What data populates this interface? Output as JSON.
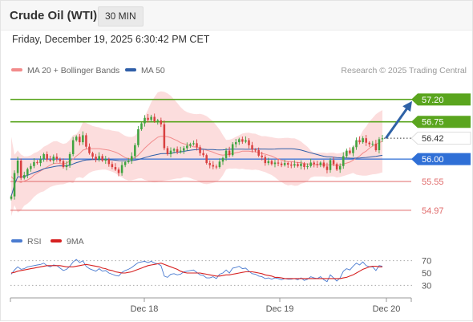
{
  "header": {
    "title": "Crude Oil (WTI)",
    "interval": "30 MIN",
    "datetime": "Friday, December 19, 2025 6:30:42 PM CET"
  },
  "legend_top": [
    {
      "label": "MA 20 + Bollinger Bands",
      "color": "#f28b8b"
    },
    {
      "label": "MA 50",
      "color": "#2f5ea8"
    }
  ],
  "credit": "Research © 2025 Trading Central",
  "legend_bottom": [
    {
      "label": "RSI",
      "color": "#4a7bd0"
    },
    {
      "label": "9MA",
      "color": "#d62020"
    }
  ],
  "colors": {
    "up": "#3fa33f",
    "down": "#d94040",
    "resistance": "#5aa51e",
    "support": "#e06a6a",
    "pivot": "#2f6fd6",
    "bollinger_fill": "#fbd7d7",
    "arrow": "#2f62a6"
  },
  "chart_data": [
    {
      "type": "candlestick",
      "x_tick_labels": [
        "Dec 18",
        "Dec 19",
        "Dec 20"
      ],
      "ylim": [
        54.5,
        57.65
      ],
      "price_levels": [
        {
          "label": "57.20",
          "value": 57.2,
          "kind": "resistance"
        },
        {
          "label": "56.75",
          "value": 56.75,
          "kind": "resistance"
        },
        {
          "label": "56.42",
          "value": 56.42,
          "kind": "last"
        },
        {
          "label": "56.00",
          "value": 56.0,
          "kind": "pivot"
        },
        {
          "label": "55.55",
          "value": 55.55,
          "kind": "support"
        },
        {
          "label": "54.97",
          "value": 54.97,
          "kind": "support"
        }
      ],
      "close": [
        55.25,
        55.72,
        55.97,
        55.62,
        55.68,
        55.8,
        55.86,
        55.94,
        55.92,
        56.0,
        56.1,
        55.99,
        55.97,
        56.05,
        56.0,
        55.96,
        55.84,
        55.88,
        56.1,
        56.38,
        56.45,
        56.34,
        56.48,
        56.25,
        56.12,
        56.05,
        55.99,
        56.06,
        55.97,
        56.0,
        55.9,
        55.84,
        55.79,
        55.72,
        55.88,
        55.94,
        55.97,
        56.06,
        56.28,
        56.6,
        56.72,
        56.83,
        56.79,
        56.85,
        56.76,
        56.78,
        56.7,
        56.22,
        56.1,
        56.17,
        56.2,
        56.14,
        56.17,
        56.22,
        56.27,
        56.3,
        56.32,
        56.24,
        56.12,
        56.08,
        55.92,
        55.88,
        55.85,
        55.84,
        55.95,
        56.02,
        56.17,
        56.08,
        56.3,
        56.34,
        56.4,
        56.35,
        56.38,
        56.28,
        56.19,
        56.18,
        56.07,
        56.04,
        55.92,
        55.96,
        55.9,
        55.93,
        55.91,
        55.88,
        55.92,
        55.89,
        55.87,
        55.9,
        55.86,
        55.91,
        55.84,
        55.86,
        55.93,
        55.9,
        55.88,
        55.93,
        55.85,
        55.78,
        55.98,
        55.9,
        55.79,
        55.86,
        56.06,
        56.17,
        56.12,
        56.24,
        56.38,
        56.34,
        56.42,
        56.33,
        56.3,
        56.31,
        56.18,
        56.4,
        56.42
      ],
      "ma20": [
        55.65,
        55.58,
        55.55,
        55.53,
        55.56,
        55.58,
        55.62,
        55.68,
        55.72,
        55.76,
        55.8,
        55.84,
        55.88,
        55.91,
        55.92,
        55.91,
        55.9,
        55.92,
        55.96,
        56.0,
        56.06,
        56.11,
        56.18,
        56.2,
        56.21,
        56.21,
        56.21,
        56.21,
        56.2,
        56.19,
        56.18,
        56.16,
        56.14,
        56.11,
        56.07,
        56.03,
        56.01,
        56.01,
        56.03,
        56.08,
        56.15,
        56.22,
        56.28,
        56.34,
        56.39,
        56.44,
        56.46,
        56.46,
        56.45,
        56.43,
        56.4,
        56.37,
        56.33,
        56.31,
        56.29,
        56.27,
        56.25,
        56.24,
        56.22,
        56.2,
        56.18,
        56.16,
        56.14,
        56.11,
        56.09,
        56.08,
        56.09,
        56.1,
        56.11,
        56.13,
        56.14,
        56.16,
        56.16,
        56.16,
        56.15,
        56.15,
        56.13,
        56.11,
        56.1,
        56.08,
        56.06,
        56.03,
        56.0,
        55.98,
        55.96,
        55.95,
        55.95,
        55.94,
        55.93,
        55.93,
        55.91,
        55.9,
        55.9,
        55.89,
        55.89,
        55.89,
        55.89,
        55.88,
        55.89,
        55.89,
        55.87,
        55.88,
        55.9,
        55.92,
        55.94,
        55.98,
        56.02,
        56.06,
        56.12,
        56.16,
        56.22,
        56.26,
        56.3,
        56.33,
        56.36
      ]
    },
    {
      "type": "line",
      "title": "RSI",
      "y_tick_labels": [
        "70",
        "50",
        "30"
      ],
      "ylim": [
        20,
        80
      ],
      "dotted_levels": [
        70,
        30
      ],
      "series": [
        {
          "name": "RSI",
          "values": [
            48,
            55,
            60,
            56,
            57,
            60,
            61,
            62,
            63,
            64,
            66,
            62,
            60,
            63,
            62,
            58,
            54,
            56,
            61,
            68,
            72,
            67,
            70,
            61,
            57,
            55,
            53,
            57,
            53,
            54,
            50,
            48,
            46,
            45,
            51,
            54,
            56,
            59,
            63,
            67,
            68,
            69,
            67,
            69,
            66,
            65,
            62,
            45,
            43,
            48,
            49,
            47,
            48,
            52,
            53,
            54,
            55,
            51,
            47,
            46,
            42,
            42,
            44,
            41,
            48,
            50,
            55,
            50,
            58,
            59,
            61,
            57,
            58,
            53,
            49,
            48,
            45,
            44,
            41,
            42,
            40,
            42,
            41,
            39,
            41,
            40,
            40,
            41,
            39,
            42,
            38,
            40,
            44,
            42,
            41,
            44,
            39,
            36,
            47,
            42,
            37,
            42,
            53,
            57,
            55,
            61,
            66,
            63,
            68,
            62,
            60,
            60,
            54,
            62,
            61
          ]
        },
        {
          "name": "9MA",
          "values": [
            50,
            51,
            53,
            54,
            55,
            56,
            57,
            58,
            59,
            60,
            61,
            62,
            62,
            62,
            62,
            62,
            61,
            60,
            60,
            60,
            61,
            62,
            63,
            64,
            63,
            62,
            61,
            60,
            58,
            57,
            55,
            54,
            52,
            51,
            50,
            50,
            51,
            52,
            54,
            56,
            58,
            60,
            62,
            63,
            64,
            65,
            66,
            64,
            62,
            60,
            58,
            56,
            53,
            51,
            50,
            50,
            50,
            50,
            50,
            49,
            48,
            47,
            46,
            45,
            45,
            46,
            47,
            47,
            48,
            49,
            50,
            51,
            52,
            52,
            52,
            51,
            50,
            49,
            47,
            46,
            45,
            43,
            43,
            42,
            41,
            41,
            41,
            41,
            41,
            41,
            41,
            41,
            41,
            41,
            41,
            41,
            41,
            41,
            41,
            41,
            41,
            41,
            42,
            43,
            45,
            47,
            50,
            53,
            56,
            58,
            60,
            61,
            61,
            60,
            60
          ]
        }
      ]
    }
  ]
}
